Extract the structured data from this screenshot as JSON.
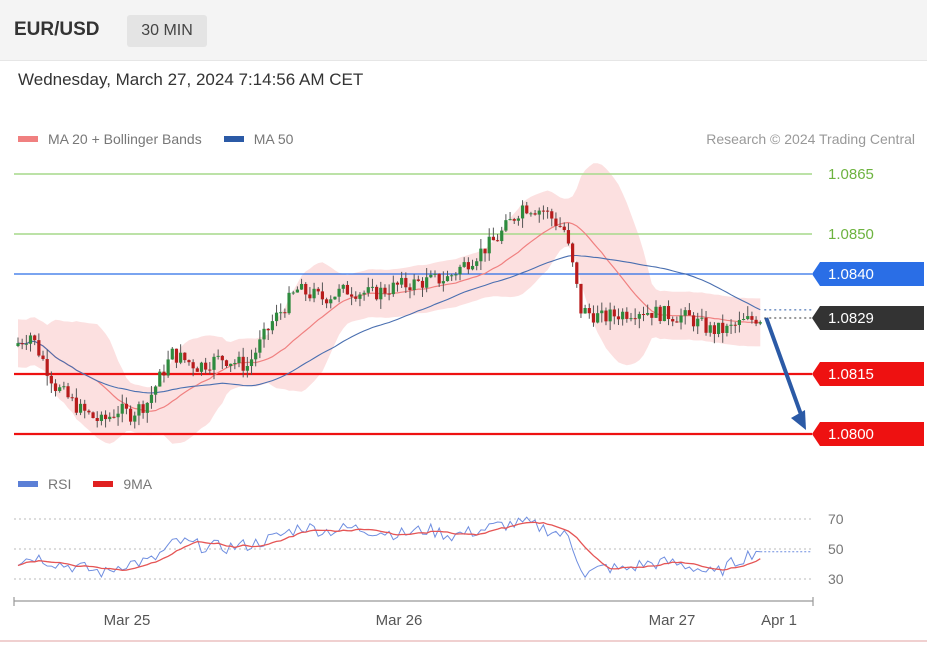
{
  "header": {
    "pair": "EUR/USD",
    "timeframe": "30 MIN"
  },
  "timestamp": "Wednesday, March 27, 2024 7:14:56 AM CET",
  "legend": {
    "price": [
      {
        "label": "MA 20 + Bollinger Bands",
        "color": "#f08080"
      },
      {
        "label": "MA 50",
        "color": "#2b5aa6"
      }
    ],
    "rsi": [
      {
        "label": "RSI",
        "color": "#5b7fd6"
      },
      {
        "label": "9MA",
        "color": "#e02020"
      }
    ]
  },
  "credit": "Research © 2024 Trading Central",
  "chart_data": {
    "type": "candlestick",
    "price_levels": [
      {
        "value": 1.0865,
        "label": "1.0865",
        "kind": "resistance-green",
        "color": "#7cc14a"
      },
      {
        "value": 1.085,
        "label": "1.0850",
        "kind": "resistance-green",
        "color": "#7cc14a"
      },
      {
        "value": 1.084,
        "label": "1.0840",
        "kind": "pivot",
        "color": "#2a6ee6"
      },
      {
        "value": 1.0829,
        "label": "1.0829",
        "kind": "last-price",
        "color": "#333333"
      },
      {
        "value": 1.0815,
        "label": "1.0815",
        "kind": "support",
        "color": "#ee1111"
      },
      {
        "value": 1.08,
        "label": "1.0800",
        "kind": "support",
        "color": "#ee1111"
      }
    ],
    "rsi_levels": [
      {
        "value": 70,
        "label": "70"
      },
      {
        "value": 50,
        "label": "50"
      },
      {
        "value": 30,
        "label": "30"
      }
    ],
    "x_ticks": [
      "Mar 25",
      "Mar 26",
      "Mar 27",
      "Apr 1"
    ],
    "forecast_arrow": {
      "from": 1.0829,
      "to": 1.08,
      "color": "#2b5aa6"
    },
    "anchors": [
      [
        0,
        1.0822
      ],
      [
        4,
        1.0825
      ],
      [
        10,
        1.0812
      ],
      [
        16,
        1.0806
      ],
      [
        21,
        1.0803
      ],
      [
        25,
        1.0806
      ],
      [
        28,
        1.0805
      ],
      [
        32,
        1.0808
      ],
      [
        38,
        1.082
      ],
      [
        44,
        1.0817
      ],
      [
        50,
        1.0819
      ],
      [
        56,
        1.0817
      ],
      [
        62,
        1.0828
      ],
      [
        68,
        1.0836
      ],
      [
        74,
        1.0834
      ],
      [
        80,
        1.0836
      ],
      [
        86,
        1.0835
      ],
      [
        92,
        1.0837
      ],
      [
        98,
        1.0838
      ],
      [
        104,
        1.0839
      ],
      [
        110,
        1.0844
      ],
      [
        116,
        1.0849
      ],
      [
        122,
        1.0857
      ],
      [
        127,
        1.0856
      ],
      [
        132,
        1.0851
      ],
      [
        134,
        1.0842
      ],
      [
        136,
        1.0831
      ],
      [
        141,
        1.0829
      ],
      [
        145,
        1.083
      ],
      [
        150,
        1.0831
      ],
      [
        156,
        1.083
      ],
      [
        162,
        1.0829
      ],
      [
        167,
        1.0826
      ],
      [
        171,
        1.0826
      ],
      [
        175,
        1.0828
      ],
      [
        178,
        1.0829
      ]
    ],
    "rsi_anchors": [
      [
        0,
        42
      ],
      [
        4,
        45
      ],
      [
        10,
        40
      ],
      [
        16,
        37
      ],
      [
        21,
        34
      ],
      [
        25,
        40
      ],
      [
        32,
        42
      ],
      [
        38,
        55
      ],
      [
        44,
        52
      ],
      [
        50,
        51
      ],
      [
        56,
        53
      ],
      [
        62,
        58
      ],
      [
        68,
        65
      ],
      [
        74,
        62
      ],
      [
        80,
        64
      ],
      [
        86,
        62
      ],
      [
        92,
        60
      ],
      [
        98,
        63
      ],
      [
        104,
        59
      ],
      [
        110,
        62
      ],
      [
        116,
        66
      ],
      [
        122,
        67
      ],
      [
        127,
        63
      ],
      [
        132,
        58
      ],
      [
        134,
        45
      ],
      [
        136,
        33
      ],
      [
        141,
        38
      ],
      [
        145,
        36
      ],
      [
        150,
        40
      ],
      [
        156,
        41
      ],
      [
        162,
        38
      ],
      [
        167,
        33
      ],
      [
        171,
        40
      ],
      [
        175,
        46
      ],
      [
        178,
        50
      ]
    ]
  }
}
